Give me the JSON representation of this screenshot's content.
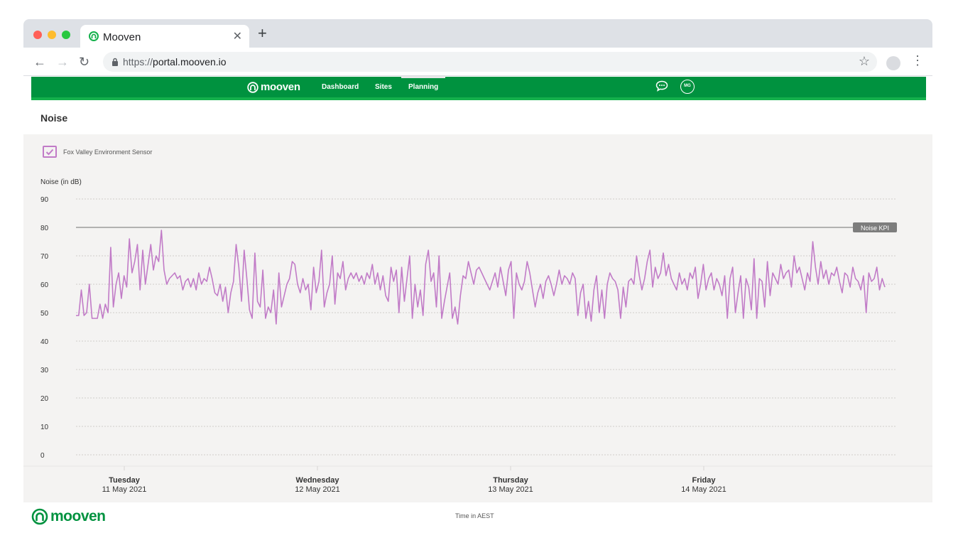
{
  "browser": {
    "tab_title": "Mooven",
    "url_scheme": "https://",
    "url_host": "portal.mooven.io"
  },
  "app": {
    "logo_text": "mooven",
    "nav": [
      "Dashboard",
      "Sites",
      "Planning"
    ],
    "active_nav": "Planning",
    "avatar_initials": "MG",
    "brand_color": "#00923f"
  },
  "page": {
    "title": "Noise",
    "legend_label": "Fox Valley Environment Sensor",
    "footer_logo": "mooven",
    "footer_note": "Time in AEST"
  },
  "chart_data": {
    "type": "line",
    "ylabel": "Noise (in dB)",
    "ylim": [
      0,
      90
    ],
    "yticks": [
      0,
      10,
      20,
      30,
      40,
      50,
      60,
      70,
      80,
      90
    ],
    "grid": true,
    "x_range": [
      "2021-05-10T18:00",
      "2021-05-15T00:00"
    ],
    "x_ticks": [
      {
        "day": "Tuesday",
        "date": "11 May 2021",
        "x": "2021-05-11T00:00"
      },
      {
        "day": "Wednesday",
        "date": "12 May 2021",
        "x": "2021-05-12T00:00"
      },
      {
        "day": "Thursday",
        "date": "13 May 2021",
        "x": "2021-05-13T00:00"
      },
      {
        "day": "Friday",
        "date": "14 May 2021",
        "x": "2021-05-14T00:00"
      }
    ],
    "reference_line": {
      "label": "Noise KPI",
      "value": 80,
      "color": "#8a8a8a"
    },
    "series": [
      {
        "name": "Fox Valley Environment Sensor",
        "color": "#c17bc7",
        "x_start": "2021-05-10T18:00",
        "x_end": "2021-05-14T22:30",
        "values": [
          49,
          49,
          58,
          49,
          50,
          60,
          48,
          48,
          48,
          53,
          48,
          53,
          50,
          73,
          52,
          60,
          64,
          55,
          63,
          59,
          76,
          64,
          68,
          74,
          58,
          72,
          60,
          67,
          74,
          65,
          70,
          68,
          79,
          65,
          60,
          62,
          63,
          64,
          62,
          63,
          58,
          61,
          62,
          59,
          62,
          58,
          64,
          60,
          62,
          61,
          66,
          62,
          57,
          56,
          60,
          54,
          59,
          50,
          57,
          61,
          74,
          66,
          54,
          72,
          62,
          51,
          48,
          71,
          54,
          52,
          65,
          48,
          52,
          50,
          58,
          46,
          64,
          52,
          56,
          60,
          62,
          68,
          67,
          60,
          57,
          62,
          58,
          60,
          51,
          66,
          57,
          61,
          72,
          52,
          57,
          60,
          70,
          53,
          64,
          62,
          68,
          58,
          62,
          64,
          62,
          64,
          61,
          63,
          60,
          64,
          62,
          67,
          60,
          64,
          58,
          63,
          56,
          54,
          66,
          61,
          65,
          50,
          66,
          54,
          62,
          70,
          48,
          60,
          52,
          58,
          49,
          67,
          72,
          61,
          64,
          52,
          70,
          48,
          54,
          59,
          64,
          48,
          52,
          46,
          56,
          63,
          62,
          68,
          64,
          60,
          65,
          66,
          64,
          62,
          60,
          58,
          61,
          64,
          59,
          66,
          61,
          56,
          65,
          68,
          48,
          64,
          60,
          58,
          61,
          68,
          64,
          58,
          52,
          57,
          60,
          55,
          61,
          63,
          60,
          56,
          60,
          65,
          60,
          63,
          62,
          60,
          64,
          62,
          49,
          57,
          60,
          48,
          54,
          47,
          58,
          63,
          50,
          58,
          48,
          60,
          64,
          62,
          61,
          58,
          48,
          59,
          52,
          61,
          62,
          60,
          70,
          63,
          58,
          62,
          68,
          72,
          59,
          66,
          62,
          64,
          71,
          63,
          67,
          62,
          60,
          58,
          64,
          60,
          62,
          58,
          64,
          62,
          66,
          55,
          60,
          67,
          58,
          62,
          64,
          58,
          62,
          60,
          56,
          63,
          48,
          62,
          66,
          50,
          57,
          63,
          48,
          62,
          59,
          51,
          69,
          48,
          62,
          61,
          52,
          68,
          56,
          64,
          62,
          60,
          67,
          62,
          64,
          65,
          59,
          70,
          64,
          66,
          62,
          58,
          64,
          61,
          75,
          66,
          60,
          68,
          62,
          65,
          60,
          64,
          63,
          66,
          61,
          57,
          64,
          63,
          59,
          66,
          62,
          61,
          58,
          63,
          50,
          64,
          61,
          62,
          66,
          58,
          62,
          59
        ]
      }
    ]
  }
}
